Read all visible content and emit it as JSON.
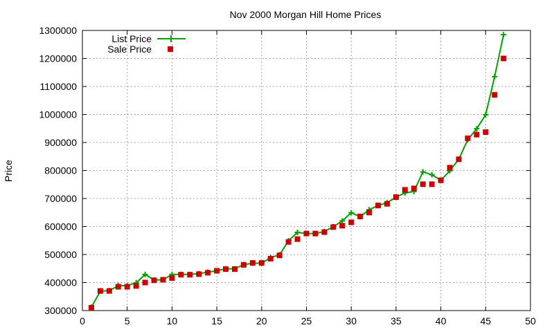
{
  "chart_data": {
    "type": "line",
    "title": "Nov 2000 Morgan Hill Home Prices",
    "xlabel": "",
    "ylabel": "Price",
    "xlim": [
      0,
      50
    ],
    "ylim": [
      300000,
      1300000
    ],
    "xticks": [
      0,
      5,
      10,
      15,
      20,
      25,
      30,
      35,
      40,
      45,
      50
    ],
    "yticks": [
      300000,
      400000,
      500000,
      600000,
      700000,
      800000,
      900000,
      1000000,
      1100000,
      1200000,
      1300000
    ],
    "grid": true,
    "legend_position": "top-left",
    "x": [
      1,
      2,
      3,
      4,
      5,
      6,
      7,
      8,
      9,
      10,
      11,
      12,
      13,
      14,
      15,
      16,
      17,
      18,
      19,
      20,
      21,
      22,
      23,
      24,
      25,
      26,
      27,
      28,
      29,
      30,
      31,
      32,
      33,
      34,
      35,
      36,
      37,
      38,
      39,
      40,
      41,
      42,
      43,
      44,
      45,
      46,
      47
    ],
    "series": [
      {
        "name": "List Price",
        "style": "line-cross",
        "color": "#00a000",
        "values": [
          312000,
          369000,
          371000,
          389000,
          389000,
          399000,
          429000,
          409000,
          410000,
          429000,
          429000,
          429000,
          432000,
          437000,
          442000,
          449000,
          449000,
          464000,
          469000,
          469000,
          489000,
          499000,
          549000,
          579000,
          575000,
          575000,
          582000,
          599000,
          620000,
          649000,
          635000,
          660000,
          675000,
          685000,
          705000,
          720000,
          725000,
          795000,
          785000,
          765000,
          799000,
          840000,
          910000,
          949000,
          999000,
          1135000,
          1285000
        ]
      },
      {
        "name": "Sale Price",
        "style": "square",
        "color": "#cc0000",
        "values": [
          310000,
          370000,
          370000,
          385000,
          385000,
          388000,
          400000,
          408000,
          410000,
          416000,
          428000,
          428000,
          430000,
          435000,
          442000,
          448000,
          448000,
          463000,
          470000,
          470000,
          485000,
          497000,
          545000,
          555000,
          575000,
          575000,
          580000,
          598000,
          603000,
          615000,
          636000,
          650000,
          675000,
          681000,
          705000,
          731000,
          736000,
          751000,
          751000,
          765000,
          810000,
          840000,
          915000,
          928000,
          937000,
          1070000,
          1200000
        ]
      }
    ]
  }
}
